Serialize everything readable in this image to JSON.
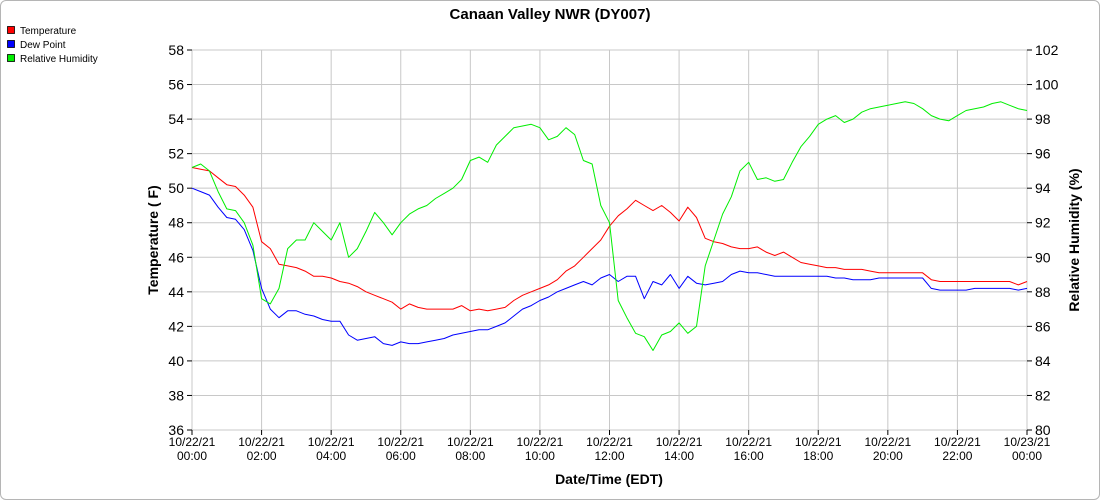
{
  "chart_data": {
    "type": "line",
    "title": "Canaan Valley NWR (DY007)",
    "xlabel": "Date/Time (EDT)",
    "ylabel_left": "Temperature ( F)",
    "ylabel_right": "Relative Humidity (%)",
    "x_range_hours": [
      0,
      24
    ],
    "y_left_range": [
      36,
      58
    ],
    "y_right_range": [
      80,
      102
    ],
    "y_left_ticks": [
      "36",
      "38",
      "40",
      "42",
      "44",
      "46",
      "48",
      "50",
      "52",
      "54",
      "56",
      "58"
    ],
    "y_right_ticks": [
      "80",
      "82",
      "84",
      "86",
      "88",
      "90",
      "92",
      "94",
      "96",
      "98",
      "100",
      "102"
    ],
    "x_ticks": [
      {
        "date": "10/22/21",
        "time": "00:00"
      },
      {
        "date": "10/22/21",
        "time": "02:00"
      },
      {
        "date": "10/22/21",
        "time": "04:00"
      },
      {
        "date": "10/22/21",
        "time": "06:00"
      },
      {
        "date": "10/22/21",
        "time": "08:00"
      },
      {
        "date": "10/22/21",
        "time": "10:00"
      },
      {
        "date": "10/22/21",
        "time": "12:00"
      },
      {
        "date": "10/22/21",
        "time": "14:00"
      },
      {
        "date": "10/22/21",
        "time": "16:00"
      },
      {
        "date": "10/22/21",
        "time": "18:00"
      },
      {
        "date": "10/22/21",
        "time": "20:00"
      },
      {
        "date": "10/22/21",
        "time": "22:00"
      },
      {
        "date": "10/23/21",
        "time": "00:00"
      }
    ],
    "grid": true,
    "legend_position": "top-left",
    "series": [
      {
        "name": "Temperature",
        "color": "#ff0000",
        "axis": "left",
        "points": [
          [
            0,
            51.2
          ],
          [
            0.25,
            51.1
          ],
          [
            0.5,
            51.0
          ],
          [
            0.75,
            50.6
          ],
          [
            1.0,
            50.2
          ],
          [
            1.25,
            50.1
          ],
          [
            1.5,
            49.6
          ],
          [
            1.75,
            48.9
          ],
          [
            2.0,
            46.9
          ],
          [
            2.25,
            46.5
          ],
          [
            2.5,
            45.6
          ],
          [
            2.75,
            45.5
          ],
          [
            3.0,
            45.4
          ],
          [
            3.25,
            45.2
          ],
          [
            3.5,
            44.9
          ],
          [
            3.75,
            44.9
          ],
          [
            4.0,
            44.8
          ],
          [
            4.25,
            44.6
          ],
          [
            4.5,
            44.5
          ],
          [
            4.75,
            44.3
          ],
          [
            5.0,
            44.0
          ],
          [
            5.25,
            43.8
          ],
          [
            5.5,
            43.6
          ],
          [
            5.75,
            43.4
          ],
          [
            6.0,
            43.0
          ],
          [
            6.25,
            43.3
          ],
          [
            6.5,
            43.1
          ],
          [
            6.75,
            43.0
          ],
          [
            7.0,
            43.0
          ],
          [
            7.25,
            43.0
          ],
          [
            7.5,
            43.0
          ],
          [
            7.75,
            43.2
          ],
          [
            8.0,
            42.9
          ],
          [
            8.25,
            43.0
          ],
          [
            8.5,
            42.9
          ],
          [
            8.75,
            43.0
          ],
          [
            9.0,
            43.1
          ],
          [
            9.25,
            43.5
          ],
          [
            9.5,
            43.8
          ],
          [
            9.75,
            44.0
          ],
          [
            10.0,
            44.2
          ],
          [
            10.25,
            44.4
          ],
          [
            10.5,
            44.7
          ],
          [
            10.75,
            45.2
          ],
          [
            11.0,
            45.5
          ],
          [
            11.25,
            46.0
          ],
          [
            11.5,
            46.5
          ],
          [
            11.75,
            47.0
          ],
          [
            12.0,
            47.8
          ],
          [
            12.25,
            48.4
          ],
          [
            12.5,
            48.8
          ],
          [
            12.75,
            49.3
          ],
          [
            13.0,
            49.0
          ],
          [
            13.25,
            48.7
          ],
          [
            13.5,
            49.0
          ],
          [
            13.75,
            48.6
          ],
          [
            14.0,
            48.1
          ],
          [
            14.25,
            48.9
          ],
          [
            14.5,
            48.3
          ],
          [
            14.75,
            47.1
          ],
          [
            15.0,
            46.9
          ],
          [
            15.25,
            46.8
          ],
          [
            15.5,
            46.6
          ],
          [
            15.75,
            46.5
          ],
          [
            16.0,
            46.5
          ],
          [
            16.25,
            46.6
          ],
          [
            16.5,
            46.3
          ],
          [
            16.75,
            46.1
          ],
          [
            17.0,
            46.3
          ],
          [
            17.25,
            46.0
          ],
          [
            17.5,
            45.7
          ],
          [
            17.75,
            45.6
          ],
          [
            18.0,
            45.5
          ],
          [
            18.25,
            45.4
          ],
          [
            18.5,
            45.4
          ],
          [
            18.75,
            45.3
          ],
          [
            19.0,
            45.3
          ],
          [
            19.25,
            45.3
          ],
          [
            19.5,
            45.2
          ],
          [
            19.75,
            45.1
          ],
          [
            20.0,
            45.1
          ],
          [
            20.25,
            45.1
          ],
          [
            20.5,
            45.1
          ],
          [
            20.75,
            45.1
          ],
          [
            21.0,
            45.1
          ],
          [
            21.25,
            44.7
          ],
          [
            21.5,
            44.6
          ],
          [
            21.75,
            44.6
          ],
          [
            22.0,
            44.6
          ],
          [
            22.25,
            44.6
          ],
          [
            22.5,
            44.6
          ],
          [
            22.75,
            44.6
          ],
          [
            23.0,
            44.6
          ],
          [
            23.25,
            44.6
          ],
          [
            23.5,
            44.6
          ],
          [
            23.75,
            44.4
          ],
          [
            24.0,
            44.6
          ]
        ]
      },
      {
        "name": "Dew Point",
        "color": "#0000ff",
        "axis": "left",
        "points": [
          [
            0,
            50.0
          ],
          [
            0.25,
            49.8
          ],
          [
            0.5,
            49.6
          ],
          [
            0.75,
            48.9
          ],
          [
            1.0,
            48.3
          ],
          [
            1.25,
            48.2
          ],
          [
            1.5,
            47.6
          ],
          [
            1.75,
            46.4
          ],
          [
            2.0,
            44.2
          ],
          [
            2.25,
            43.0
          ],
          [
            2.5,
            42.5
          ],
          [
            2.75,
            42.9
          ],
          [
            3.0,
            42.9
          ],
          [
            3.25,
            42.7
          ],
          [
            3.5,
            42.6
          ],
          [
            3.75,
            42.4
          ],
          [
            4.0,
            42.3
          ],
          [
            4.25,
            42.3
          ],
          [
            4.5,
            41.5
          ],
          [
            4.75,
            41.2
          ],
          [
            5.0,
            41.3
          ],
          [
            5.25,
            41.4
          ],
          [
            5.5,
            41.0
          ],
          [
            5.75,
            40.9
          ],
          [
            6.0,
            41.1
          ],
          [
            6.25,
            41.0
          ],
          [
            6.5,
            41.0
          ],
          [
            6.75,
            41.1
          ],
          [
            7.0,
            41.2
          ],
          [
            7.25,
            41.3
          ],
          [
            7.5,
            41.5
          ],
          [
            7.75,
            41.6
          ],
          [
            8.0,
            41.7
          ],
          [
            8.25,
            41.8
          ],
          [
            8.5,
            41.8
          ],
          [
            8.75,
            42.0
          ],
          [
            9.0,
            42.2
          ],
          [
            9.25,
            42.6
          ],
          [
            9.5,
            43.0
          ],
          [
            9.75,
            43.2
          ],
          [
            10.0,
            43.5
          ],
          [
            10.25,
            43.7
          ],
          [
            10.5,
            44.0
          ],
          [
            10.75,
            44.2
          ],
          [
            11.0,
            44.4
          ],
          [
            11.25,
            44.6
          ],
          [
            11.5,
            44.4
          ],
          [
            11.75,
            44.8
          ],
          [
            12.0,
            45.0
          ],
          [
            12.25,
            44.6
          ],
          [
            12.5,
            44.9
          ],
          [
            12.75,
            44.9
          ],
          [
            13.0,
            43.6
          ],
          [
            13.25,
            44.6
          ],
          [
            13.5,
            44.4
          ],
          [
            13.75,
            45.0
          ],
          [
            14.0,
            44.2
          ],
          [
            14.25,
            44.9
          ],
          [
            14.5,
            44.5
          ],
          [
            14.75,
            44.4
          ],
          [
            15.0,
            44.5
          ],
          [
            15.25,
            44.6
          ],
          [
            15.5,
            45.0
          ],
          [
            15.75,
            45.2
          ],
          [
            16.0,
            45.1
          ],
          [
            16.25,
            45.1
          ],
          [
            16.5,
            45.0
          ],
          [
            16.75,
            44.9
          ],
          [
            17.0,
            44.9
          ],
          [
            17.25,
            44.9
          ],
          [
            17.5,
            44.9
          ],
          [
            17.75,
            44.9
          ],
          [
            18.0,
            44.9
          ],
          [
            18.25,
            44.9
          ],
          [
            18.5,
            44.8
          ],
          [
            18.75,
            44.8
          ],
          [
            19.0,
            44.7
          ],
          [
            19.25,
            44.7
          ],
          [
            19.5,
            44.7
          ],
          [
            19.75,
            44.8
          ],
          [
            20.0,
            44.8
          ],
          [
            20.25,
            44.8
          ],
          [
            20.5,
            44.8
          ],
          [
            20.75,
            44.8
          ],
          [
            21.0,
            44.8
          ],
          [
            21.25,
            44.2
          ],
          [
            21.5,
            44.1
          ],
          [
            21.75,
            44.1
          ],
          [
            22.0,
            44.1
          ],
          [
            22.25,
            44.1
          ],
          [
            22.5,
            44.2
          ],
          [
            22.75,
            44.2
          ],
          [
            23.0,
            44.2
          ],
          [
            23.25,
            44.2
          ],
          [
            23.5,
            44.2
          ],
          [
            23.75,
            44.1
          ],
          [
            24.0,
            44.2
          ]
        ]
      },
      {
        "name": "Relative Humidity",
        "color": "#00ee00",
        "axis": "right",
        "points": [
          [
            0,
            95.2
          ],
          [
            0.25,
            95.4
          ],
          [
            0.5,
            95.0
          ],
          [
            0.75,
            93.8
          ],
          [
            1.0,
            92.8
          ],
          [
            1.25,
            92.7
          ],
          [
            1.5,
            92.0
          ],
          [
            1.75,
            90.7
          ],
          [
            2.0,
            87.6
          ],
          [
            2.25,
            87.3
          ],
          [
            2.5,
            88.2
          ],
          [
            2.75,
            90.5
          ],
          [
            3.0,
            91.0
          ],
          [
            3.25,
            91.0
          ],
          [
            3.5,
            92.0
          ],
          [
            3.75,
            91.5
          ],
          [
            4.0,
            91.0
          ],
          [
            4.25,
            92.0
          ],
          [
            4.5,
            90.0
          ],
          [
            4.75,
            90.5
          ],
          [
            5.0,
            91.5
          ],
          [
            5.25,
            92.6
          ],
          [
            5.5,
            92.0
          ],
          [
            5.75,
            91.3
          ],
          [
            6.0,
            92.0
          ],
          [
            6.25,
            92.5
          ],
          [
            6.5,
            92.8
          ],
          [
            6.75,
            93.0
          ],
          [
            7.0,
            93.4
          ],
          [
            7.25,
            93.7
          ],
          [
            7.5,
            94.0
          ],
          [
            7.75,
            94.5
          ],
          [
            8.0,
            95.6
          ],
          [
            8.25,
            95.8
          ],
          [
            8.5,
            95.5
          ],
          [
            8.75,
            96.5
          ],
          [
            9.0,
            97.0
          ],
          [
            9.25,
            97.5
          ],
          [
            9.5,
            97.6
          ],
          [
            9.75,
            97.7
          ],
          [
            10.0,
            97.5
          ],
          [
            10.25,
            96.8
          ],
          [
            10.5,
            97.0
          ],
          [
            10.75,
            97.5
          ],
          [
            11.0,
            97.1
          ],
          [
            11.25,
            95.6
          ],
          [
            11.5,
            95.4
          ],
          [
            11.75,
            93.0
          ],
          [
            12.0,
            92.0
          ],
          [
            12.25,
            87.5
          ],
          [
            12.5,
            86.5
          ],
          [
            12.75,
            85.6
          ],
          [
            13.0,
            85.4
          ],
          [
            13.25,
            84.6
          ],
          [
            13.5,
            85.5
          ],
          [
            13.75,
            85.7
          ],
          [
            14.0,
            86.2
          ],
          [
            14.25,
            85.6
          ],
          [
            14.5,
            86.0
          ],
          [
            14.75,
            89.5
          ],
          [
            15.0,
            91.0
          ],
          [
            15.25,
            92.5
          ],
          [
            15.5,
            93.5
          ],
          [
            15.75,
            95.0
          ],
          [
            16.0,
            95.5
          ],
          [
            16.25,
            94.5
          ],
          [
            16.5,
            94.6
          ],
          [
            16.75,
            94.4
          ],
          [
            17.0,
            94.5
          ],
          [
            17.25,
            95.5
          ],
          [
            17.5,
            96.4
          ],
          [
            17.75,
            97.0
          ],
          [
            18.0,
            97.7
          ],
          [
            18.25,
            98.0
          ],
          [
            18.5,
            98.2
          ],
          [
            18.75,
            97.8
          ],
          [
            19.0,
            98.0
          ],
          [
            19.25,
            98.4
          ],
          [
            19.5,
            98.6
          ],
          [
            19.75,
            98.7
          ],
          [
            20.0,
            98.8
          ],
          [
            20.25,
            98.9
          ],
          [
            20.5,
            99.0
          ],
          [
            20.75,
            98.9
          ],
          [
            21.0,
            98.6
          ],
          [
            21.25,
            98.2
          ],
          [
            21.5,
            98.0
          ],
          [
            21.75,
            97.9
          ],
          [
            22.0,
            98.2
          ],
          [
            22.25,
            98.5
          ],
          [
            22.5,
            98.6
          ],
          [
            22.75,
            98.7
          ],
          [
            23.0,
            98.9
          ],
          [
            23.25,
            99.0
          ],
          [
            23.5,
            98.8
          ],
          [
            23.75,
            98.6
          ],
          [
            24.0,
            98.5
          ]
        ]
      }
    ]
  }
}
